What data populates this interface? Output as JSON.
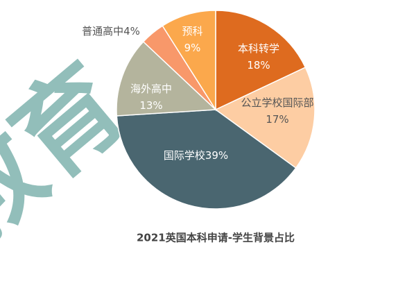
{
  "chart_data": {
    "type": "pie",
    "title": "2021英国本科申请-学生背景占比",
    "watermark": "教育",
    "categories": [
      "本科转学",
      "公立学校国际部",
      "国际学校",
      "海外高中",
      "普通高中",
      "预科"
    ],
    "values": [
      18,
      17,
      39,
      13,
      4,
      9
    ],
    "value_labels": [
      "18%",
      "17%",
      "39%",
      "13%",
      "4%",
      "9%"
    ],
    "colors": [
      "#de6b1f",
      "#fdcda3",
      "#4a6670",
      "#b4b49d",
      "#f8986a",
      "#fba84c"
    ]
  }
}
